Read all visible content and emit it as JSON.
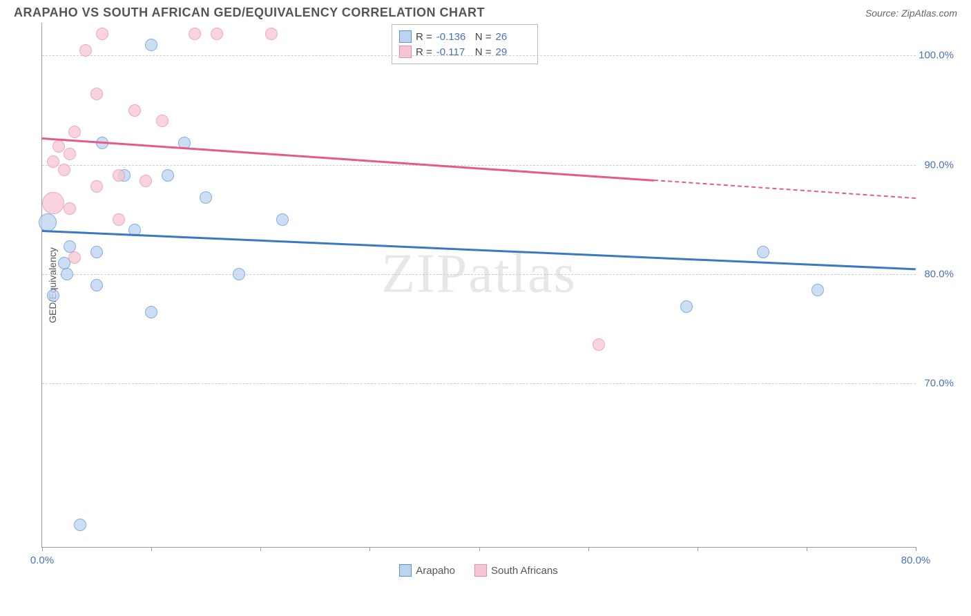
{
  "title": "ARAPAHO VS SOUTH AFRICAN GED/EQUIVALENCY CORRELATION CHART",
  "source": "Source: ZipAtlas.com",
  "watermark": "ZIPatlas",
  "chart": {
    "type": "scatter",
    "ylabel": "GED/Equivalency",
    "xlim": [
      0,
      80
    ],
    "ylim": [
      55,
      103
    ],
    "xticks": [
      0,
      10,
      20,
      30,
      40,
      50,
      60,
      70,
      80
    ],
    "xtick_labels": {
      "0": "0.0%",
      "80": "80.0%"
    },
    "yticks": [
      70,
      80,
      90,
      100
    ],
    "ytick_labels": {
      "70": "70.0%",
      "80": "80.0%",
      "90": "90.0%",
      "100": "100.0%"
    },
    "grid_color": "#cccccc",
    "background_color": "#ffffff",
    "axis_color": "#999999",
    "tick_label_color": "#4a72b8",
    "label_fontsize": 14,
    "tick_fontsize": 15
  },
  "series": [
    {
      "name": "Arapaho",
      "fill_color": "#bcd4f0",
      "stroke_color": "#5c93d6",
      "line_color": "#3b78c4",
      "R": "-0.136",
      "N": "26",
      "trend": {
        "x0": 0,
        "y0": 84.0,
        "x1": 80,
        "y1": 80.5,
        "solid_until_x": 80
      },
      "default_radius": 9,
      "points": [
        {
          "x": 0.5,
          "y": 84.7,
          "r": 13
        },
        {
          "x": 10.0,
          "y": 101.0
        },
        {
          "x": 5.5,
          "y": 92.0
        },
        {
          "x": 13.0,
          "y": 92.0
        },
        {
          "x": 7.5,
          "y": 89.0
        },
        {
          "x": 11.5,
          "y": 89.0
        },
        {
          "x": 15.0,
          "y": 87.0
        },
        {
          "x": 22.0,
          "y": 85.0
        },
        {
          "x": 8.5,
          "y": 84.0
        },
        {
          "x": 2.5,
          "y": 82.5
        },
        {
          "x": 5.0,
          "y": 82.0
        },
        {
          "x": 2.0,
          "y": 81.0
        },
        {
          "x": 2.3,
          "y": 80.0
        },
        {
          "x": 5.0,
          "y": 79.0
        },
        {
          "x": 1.0,
          "y": 78.0
        },
        {
          "x": 10.0,
          "y": 76.5
        },
        {
          "x": 18.0,
          "y": 80.0
        },
        {
          "x": 59.0,
          "y": 77.0
        },
        {
          "x": 66.0,
          "y": 82.0
        },
        {
          "x": 71.0,
          "y": 78.5
        },
        {
          "x": 3.5,
          "y": 57.0
        }
      ]
    },
    {
      "name": "South Africans",
      "fill_color": "#f7c6d5",
      "stroke_color": "#e98bab",
      "line_color": "#e55a8a",
      "R": "-0.117",
      "N": "29",
      "trend": {
        "x0": 0,
        "y0": 92.5,
        "x1": 80,
        "y1": 87.0,
        "solid_until_x": 56
      },
      "default_radius": 9,
      "points": [
        {
          "x": 5.5,
          "y": 102.0
        },
        {
          "x": 14.0,
          "y": 102.0
        },
        {
          "x": 16.0,
          "y": 102.0
        },
        {
          "x": 21.0,
          "y": 102.0
        },
        {
          "x": 4.0,
          "y": 100.5
        },
        {
          "x": 5.0,
          "y": 96.5
        },
        {
          "x": 8.5,
          "y": 95.0
        },
        {
          "x": 11.0,
          "y": 94.0
        },
        {
          "x": 3.0,
          "y": 93.0
        },
        {
          "x": 1.5,
          "y": 91.7
        },
        {
          "x": 2.5,
          "y": 91.0
        },
        {
          "x": 1.0,
          "y": 90.3
        },
        {
          "x": 2.0,
          "y": 89.5
        },
        {
          "x": 7.0,
          "y": 89.0
        },
        {
          "x": 9.5,
          "y": 88.5
        },
        {
          "x": 5.0,
          "y": 88.0
        },
        {
          "x": 1.0,
          "y": 86.5,
          "r": 16
        },
        {
          "x": 2.5,
          "y": 86.0
        },
        {
          "x": 7.0,
          "y": 85.0
        },
        {
          "x": 3.0,
          "y": 81.5
        },
        {
          "x": 51.0,
          "y": 73.5
        }
      ]
    }
  ],
  "stats_box": {
    "rows": [
      {
        "swatch": 0,
        "r_label": "R =",
        "r_val": "-0.136",
        "n_label": "N =",
        "n_val": "26"
      },
      {
        "swatch": 1,
        "r_label": "R =",
        "r_val": "-0.117",
        "n_label": "N =",
        "n_val": "29"
      }
    ]
  },
  "legend": {
    "items": [
      {
        "swatch": 0,
        "label": "Arapaho"
      },
      {
        "swatch": 1,
        "label": "South Africans"
      }
    ]
  }
}
